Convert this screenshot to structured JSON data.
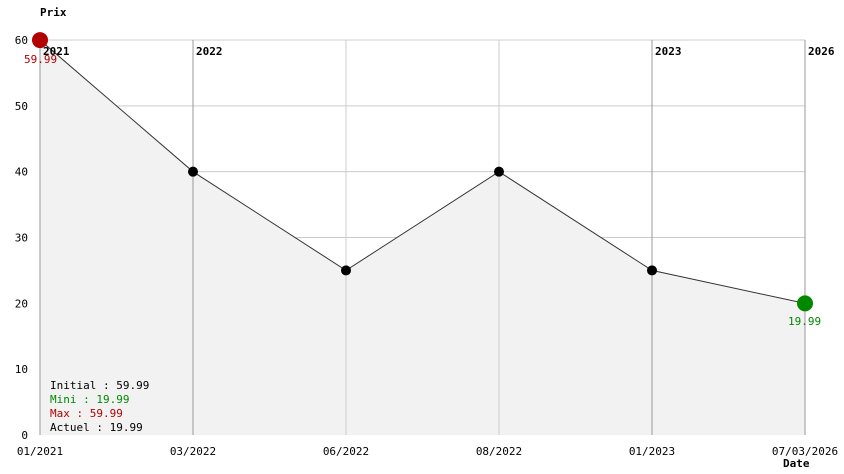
{
  "chart_data": {
    "type": "line",
    "ylabel": "Prix",
    "xlabel": "Date",
    "ylim": [
      0,
      60
    ],
    "yticks": [
      0,
      10,
      20,
      30,
      40,
      50,
      60
    ],
    "grid": true,
    "categories": [
      "01/2021",
      "03/2022",
      "06/2022",
      "08/2022",
      "01/2023",
      "07/03/2026"
    ],
    "values": [
      59.99,
      40,
      25,
      40,
      25,
      19.99
    ],
    "year_markers": [
      {
        "index": 0,
        "label": "2021"
      },
      {
        "index": 1,
        "label": "2022"
      },
      {
        "index": 4,
        "label": "2023"
      },
      {
        "index": 5,
        "label": "2026"
      }
    ],
    "max_label": "59.99",
    "min_label": "19.99",
    "colors": {
      "max": "#b30000",
      "min": "#008800",
      "line": "#333333",
      "fill": "#f2f2f2",
      "point": "#000000"
    },
    "legend": {
      "initial": "Initial : 59.99",
      "mini": "Mini : 19.99",
      "max": "Max : 59.99",
      "actuel": "Actuel : 19.99"
    }
  }
}
